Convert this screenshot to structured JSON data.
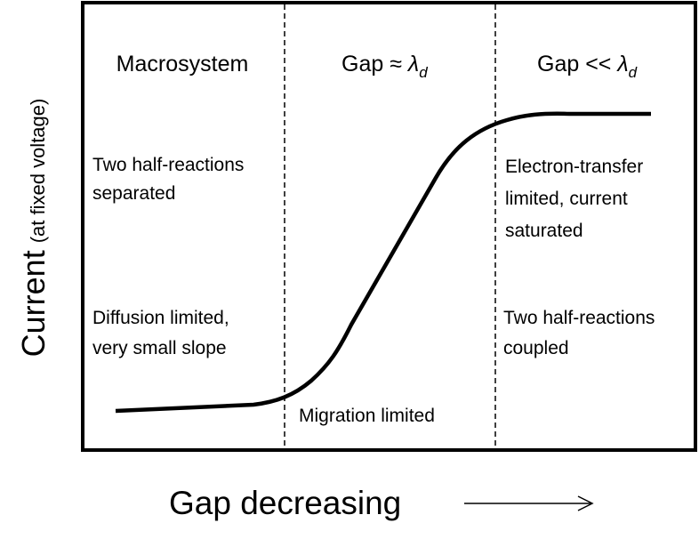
{
  "axes": {
    "y_label": {
      "main": "Current",
      "note": "(at fixed voltage)"
    },
    "x_label": "Gap decreasing"
  },
  "regions": [
    {
      "header": {
        "text": "Macrosystem"
      },
      "notes": [
        [
          "Two half-reactions",
          "separated"
        ],
        [
          "Diffusion limited,",
          "very small slope"
        ]
      ]
    },
    {
      "header": {
        "text": "Gap ≈ ",
        "symbol": "λ",
        "subscript": "d"
      },
      "notes": [
        [
          "Migration limited"
        ]
      ]
    },
    {
      "header": {
        "text": "Gap << ",
        "symbol": "λ",
        "subscript": "d"
      },
      "notes": [
        [
          "Electron-transfer",
          "limited, current",
          "saturated"
        ],
        [
          "Two half-reactions",
          "coupled"
        ]
      ]
    }
  ]
}
